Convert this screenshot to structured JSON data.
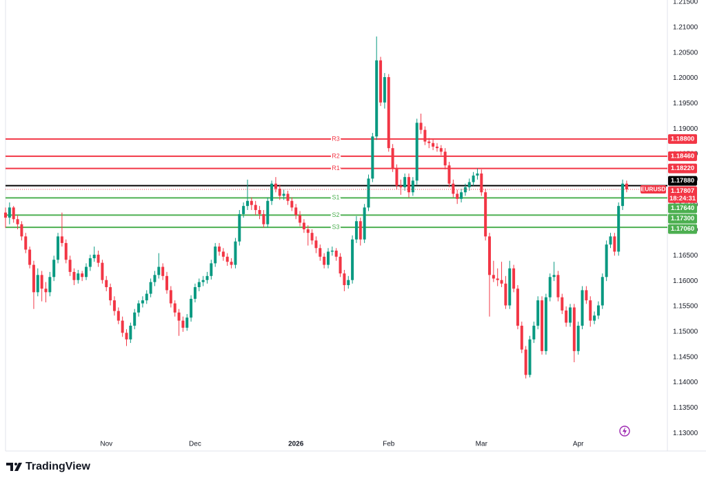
{
  "chart_data": {
    "type": "candlestick",
    "symbol": "EURUSD",
    "countdown": "18:24:31",
    "up_color": "#089981",
    "down_color": "#f23645",
    "ylim": [
      1.1265,
      1.2154
    ],
    "yticks": [
      {
        "value": 1.215,
        "label": "1.21500"
      },
      {
        "value": 1.21,
        "label": "1.21000"
      },
      {
        "value": 1.205,
        "label": "1.20500"
      },
      {
        "value": 1.2,
        "label": "1.20000"
      },
      {
        "value": 1.195,
        "label": "1.19500"
      },
      {
        "value": 1.19,
        "label": "1.19000"
      },
      {
        "value": 1.185,
        "label": "1.18500"
      },
      {
        "value": 1.18,
        "label": "1.18000"
      },
      {
        "value": 1.175,
        "label": "1.17500"
      },
      {
        "value": 1.17,
        "label": "1.17000"
      },
      {
        "value": 1.165,
        "label": "1.16500"
      },
      {
        "value": 1.16,
        "label": "1.16000"
      },
      {
        "value": 1.155,
        "label": "1.15500"
      },
      {
        "value": 1.15,
        "label": "1.15000"
      },
      {
        "value": 1.145,
        "label": "1.14500"
      },
      {
        "value": 1.14,
        "label": "1.14000"
      },
      {
        "value": 1.135,
        "label": "1.13500"
      },
      {
        "value": 1.13,
        "label": "1.13000"
      }
    ],
    "levels": [
      {
        "name": "R3",
        "value": 1.188,
        "label": "1.18800",
        "color": "#f23645"
      },
      {
        "name": "R2",
        "value": 1.1846,
        "label": "1.18460",
        "color": "#f23645"
      },
      {
        "name": "R1",
        "value": 1.1822,
        "label": "1.18220",
        "color": "#f23645"
      },
      {
        "name": "S1",
        "value": 1.1764,
        "label": "1.17640",
        "color": "#4caf50"
      },
      {
        "name": "S2",
        "value": 1.173,
        "label": "1.17300",
        "color": "#4caf50"
      },
      {
        "name": "S3",
        "value": 1.1706,
        "label": "1.17060",
        "color": "#4caf50"
      }
    ],
    "reference_line": {
      "value": 1.1788,
      "label": "1.17880",
      "color": "#000000"
    },
    "categories": [
      null,
      null,
      null,
      null,
      null,
      null,
      null,
      null,
      null,
      null,
      null,
      null,
      null,
      null,
      null,
      null,
      null,
      null,
      null,
      null,
      null,
      null,
      null,
      null,
      null,
      "Nov",
      null,
      null,
      null,
      null,
      null,
      null,
      null,
      null,
      null,
      null,
      null,
      null,
      null,
      null,
      null,
      null,
      null,
      null,
      null,
      null,
      null,
      "Dec",
      null,
      null,
      null,
      null,
      null,
      null,
      null,
      null,
      null,
      null,
      null,
      null,
      null,
      null,
      null,
      null,
      null,
      null,
      null,
      null,
      null,
      null,
      null,
      null,
      "2026",
      null,
      null,
      null,
      null,
      null,
      null,
      null,
      null,
      null,
      null,
      null,
      null,
      null,
      null,
      null,
      null,
      null,
      null,
      null,
      null,
      null,
      null,
      "Feb",
      null,
      null,
      null,
      null,
      null,
      null,
      null,
      null,
      null,
      null,
      null,
      null,
      null,
      null,
      null,
      null,
      null,
      null,
      null,
      null,
      null,
      null,
      "Mar",
      null,
      null,
      null,
      null,
      null,
      null,
      null,
      null,
      null,
      null,
      null,
      null,
      null,
      null,
      null,
      null,
      null,
      null,
      null,
      null,
      null,
      null,
      null,
      "Apr",
      null,
      null,
      null,
      null,
      null,
      null,
      null,
      null,
      null,
      null,
      null,
      null
    ],
    "open": [
      1.1735,
      1.1725,
      1.1745,
      1.1722,
      1.1712,
      1.1688,
      1.1662,
      1.1632,
      1.1578,
      1.1612,
      1.1585,
      1.1578,
      1.1608,
      1.1642,
      1.1688,
      1.1675,
      1.1642,
      1.1618,
      1.1602,
      1.1615,
      1.1608,
      1.1628,
      1.1645,
      1.1652,
      1.1636,
      1.1602,
      1.1588,
      1.1562,
      1.1541,
      1.1522,
      1.1498,
      1.1485,
      1.1512,
      1.1538,
      1.1556,
      1.1562,
      1.1575,
      1.1598,
      1.1612,
      1.1628,
      1.161,
      1.1582,
      1.1556,
      1.1538,
      1.1522,
      1.1508,
      1.1528,
      1.1565,
      1.1588,
      1.1598,
      1.1602,
      1.161,
      1.1635,
      1.1668,
      1.1658,
      1.1648,
      1.1638,
      1.1632,
      1.1678,
      1.1732,
      1.1748,
      1.1758,
      1.175,
      1.174,
      1.1732,
      1.1712,
      1.1758,
      1.1792,
      1.1782,
      1.1768,
      1.1772,
      1.1758,
      1.1745,
      1.173,
      1.1715,
      1.1702,
      1.1695,
      1.168,
      1.1665,
      1.1648,
      1.1632,
      1.1658,
      1.166,
      1.1648,
      1.1615,
      1.1592,
      1.1602,
      1.1682,
      1.1718,
      1.1682,
      1.1745,
      1.1802,
      1.1885,
      1.2035,
      1.1952,
      1.2002,
      1.1862,
      1.1822,
      1.1788,
      1.1785,
      1.1805,
      1.1775,
      1.1798,
      1.1912,
      1.1898,
      1.1875,
      1.1872,
      1.1865,
      1.1862,
      1.1855,
      1.1828,
      1.1792,
      1.1772,
      1.1762,
      1.1775,
      1.1785,
      1.1795,
      1.1808,
      1.1812,
      1.1775,
      1.1688,
      1.1612,
      1.1605,
      1.1602,
      1.1595,
      1.1552,
      1.1625,
      1.1585,
      1.1512,
      1.1465,
      1.1415,
      1.1485,
      1.1512,
      1.1562,
      1.1462,
      1.1568,
      1.1608,
      1.1612,
      1.1568,
      1.1542,
      1.1518,
      1.1548,
      1.1462,
      1.1512,
      1.1582,
      1.1562,
      1.1522,
      1.1532,
      1.1552,
      1.1608,
      1.1672,
      1.1688,
      1.1658,
      1.1748,
      1.1792
    ],
    "high": [
      1.1745,
      1.1755,
      1.1748,
      1.173,
      1.1718,
      1.1695,
      1.1668,
      1.164,
      1.1625,
      1.162,
      1.1598,
      1.1618,
      1.165,
      1.1695,
      1.1735,
      1.1682,
      1.165,
      1.1625,
      1.1622,
      1.162,
      1.1635,
      1.1652,
      1.1668,
      1.166,
      1.1642,
      1.161,
      1.1595,
      1.157,
      1.1548,
      1.153,
      1.1505,
      1.1518,
      1.1545,
      1.1562,
      1.157,
      1.1582,
      1.1605,
      1.162,
      1.1655,
      1.1635,
      1.1618,
      1.159,
      1.1562,
      1.1545,
      1.153,
      1.1535,
      1.1572,
      1.1595,
      1.1605,
      1.161,
      1.1618,
      1.1642,
      1.1675,
      1.1675,
      1.1665,
      1.1655,
      1.1645,
      1.1685,
      1.174,
      1.1755,
      1.18,
      1.1765,
      1.1758,
      1.1748,
      1.174,
      1.1765,
      1.1798,
      1.1805,
      1.179,
      1.178,
      1.1778,
      1.1765,
      1.1752,
      1.1738,
      1.1722,
      1.171,
      1.1702,
      1.1688,
      1.1672,
      1.1655,
      1.1665,
      1.1668,
      1.1665,
      1.1655,
      1.1622,
      1.161,
      1.169,
      1.1728,
      1.1725,
      1.1752,
      1.181,
      1.1892,
      1.2082,
      1.2042,
      1.201,
      1.2008,
      1.187,
      1.183,
      1.18,
      1.1812,
      1.1812,
      1.1805,
      1.192,
      1.193,
      1.1905,
      1.1882,
      1.188,
      1.1872,
      1.1868,
      1.1862,
      1.1835,
      1.18,
      1.178,
      1.1782,
      1.1792,
      1.1802,
      1.1815,
      1.1822,
      1.182,
      1.1782,
      1.1695,
      1.164,
      1.1625,
      1.1638,
      1.161,
      1.164,
      1.1632,
      1.1592,
      1.152,
      1.1472,
      1.1492,
      1.152,
      1.157,
      1.157,
      1.1575,
      1.1615,
      1.1638,
      1.162,
      1.1575,
      1.155,
      1.1555,
      1.1555,
      1.152,
      1.159,
      1.159,
      1.157,
      1.154,
      1.156,
      1.1615,
      1.168,
      1.1695,
      1.1695,
      1.1755,
      1.18,
      1.1798
    ],
    "low": [
      1.1705,
      1.1712,
      1.1715,
      1.1702,
      1.168,
      1.1655,
      1.1625,
      1.1545,
      1.157,
      1.156,
      1.1558,
      1.157,
      1.16,
      1.1635,
      1.1668,
      1.1635,
      1.161,
      1.1592,
      1.1595,
      1.16,
      1.1602,
      1.162,
      1.1638,
      1.1628,
      1.1595,
      1.158,
      1.1552,
      1.1532,
      1.1515,
      1.149,
      1.1472,
      1.1478,
      1.1505,
      1.153,
      1.1548,
      1.1555,
      1.1568,
      1.159,
      1.1605,
      1.1602,
      1.1575,
      1.1548,
      1.153,
      1.1492,
      1.15,
      1.1502,
      1.152,
      1.1558,
      1.158,
      1.159,
      1.1595,
      1.1603,
      1.1628,
      1.165,
      1.164,
      1.163,
      1.1625,
      1.1625,
      1.167,
      1.1725,
      1.174,
      1.174,
      1.173,
      1.1722,
      1.1705,
      1.1705,
      1.175,
      1.1775,
      1.176,
      1.176,
      1.175,
      1.1738,
      1.1722,
      1.1708,
      1.1695,
      1.167,
      1.1672,
      1.1655,
      1.164,
      1.1625,
      1.1625,
      1.165,
      1.164,
      1.1608,
      1.158,
      1.1585,
      1.1595,
      1.1675,
      1.167,
      1.1675,
      1.1738,
      1.1795,
      1.1878,
      1.1945,
      1.194,
      1.1855,
      1.1815,
      1.178,
      1.177,
      1.1778,
      1.1765,
      1.1768,
      1.179,
      1.189,
      1.1868,
      1.1862,
      1.1858,
      1.1855,
      1.1848,
      1.182,
      1.1785,
      1.1765,
      1.1752,
      1.1755,
      1.1768,
      1.1778,
      1.1788,
      1.18,
      1.1768,
      1.168,
      1.153,
      1.1598,
      1.159,
      1.1588,
      1.1545,
      1.1545,
      1.1578,
      1.1505,
      1.1458,
      1.1408,
      1.141,
      1.1478,
      1.1505,
      1.1455,
      1.1455,
      1.156,
      1.16,
      1.156,
      1.1535,
      1.151,
      1.151,
      1.144,
      1.1455,
      1.1505,
      1.1555,
      1.151,
      1.1515,
      1.1525,
      1.1545,
      1.16,
      1.1665,
      1.165,
      1.165,
      1.174,
      1.1775
    ],
    "close": [
      1.1725,
      1.1745,
      1.1722,
      1.1712,
      1.1688,
      1.1662,
      1.1632,
      1.1578,
      1.1612,
      1.1585,
      1.1578,
      1.1608,
      1.1642,
      1.1688,
      1.1675,
      1.1642,
      1.1618,
      1.1602,
      1.1615,
      1.1608,
      1.1628,
      1.1645,
      1.1652,
      1.1636,
      1.1602,
      1.1588,
      1.1562,
      1.1541,
      1.1522,
      1.1498,
      1.1485,
      1.1512,
      1.1538,
      1.1556,
      1.1562,
      1.1575,
      1.1598,
      1.1612,
      1.1628,
      1.161,
      1.1582,
      1.1556,
      1.1538,
      1.1522,
      1.1508,
      1.1528,
      1.1565,
      1.1588,
      1.1598,
      1.1602,
      1.161,
      1.1635,
      1.1668,
      1.1658,
      1.1648,
      1.1638,
      1.1632,
      1.1678,
      1.1732,
      1.1748,
      1.1758,
      1.175,
      1.174,
      1.1732,
      1.1712,
      1.1758,
      1.1792,
      1.1782,
      1.1768,
      1.1772,
      1.1758,
      1.1745,
      1.173,
      1.1715,
      1.1702,
      1.1695,
      1.168,
      1.1665,
      1.1648,
      1.1632,
      1.1658,
      1.166,
      1.1648,
      1.1615,
      1.1592,
      1.1602,
      1.1682,
      1.1718,
      1.1682,
      1.1745,
      1.1802,
      1.1885,
      1.2035,
      1.1952,
      1.2002,
      1.1862,
      1.1822,
      1.1788,
      1.1785,
      1.1805,
      1.1775,
      1.1798,
      1.1912,
      1.1898,
      1.1875,
      1.1872,
      1.1865,
      1.1862,
      1.1855,
      1.1828,
      1.1792,
      1.1772,
      1.1762,
      1.1775,
      1.1785,
      1.1795,
      1.1808,
      1.1812,
      1.1775,
      1.1688,
      1.1612,
      1.1605,
      1.1602,
      1.1595,
      1.1552,
      1.1625,
      1.1585,
      1.1512,
      1.1465,
      1.1415,
      1.1485,
      1.1512,
      1.1562,
      1.1462,
      1.1568,
      1.1608,
      1.1612,
      1.1568,
      1.1542,
      1.1518,
      1.1548,
      1.1462,
      1.1512,
      1.1582,
      1.1562,
      1.1522,
      1.1532,
      1.1552,
      1.1608,
      1.1672,
      1.1688,
      1.1658,
      1.1748,
      1.1792,
      1.17807
    ]
  },
  "brand": "TradingView"
}
